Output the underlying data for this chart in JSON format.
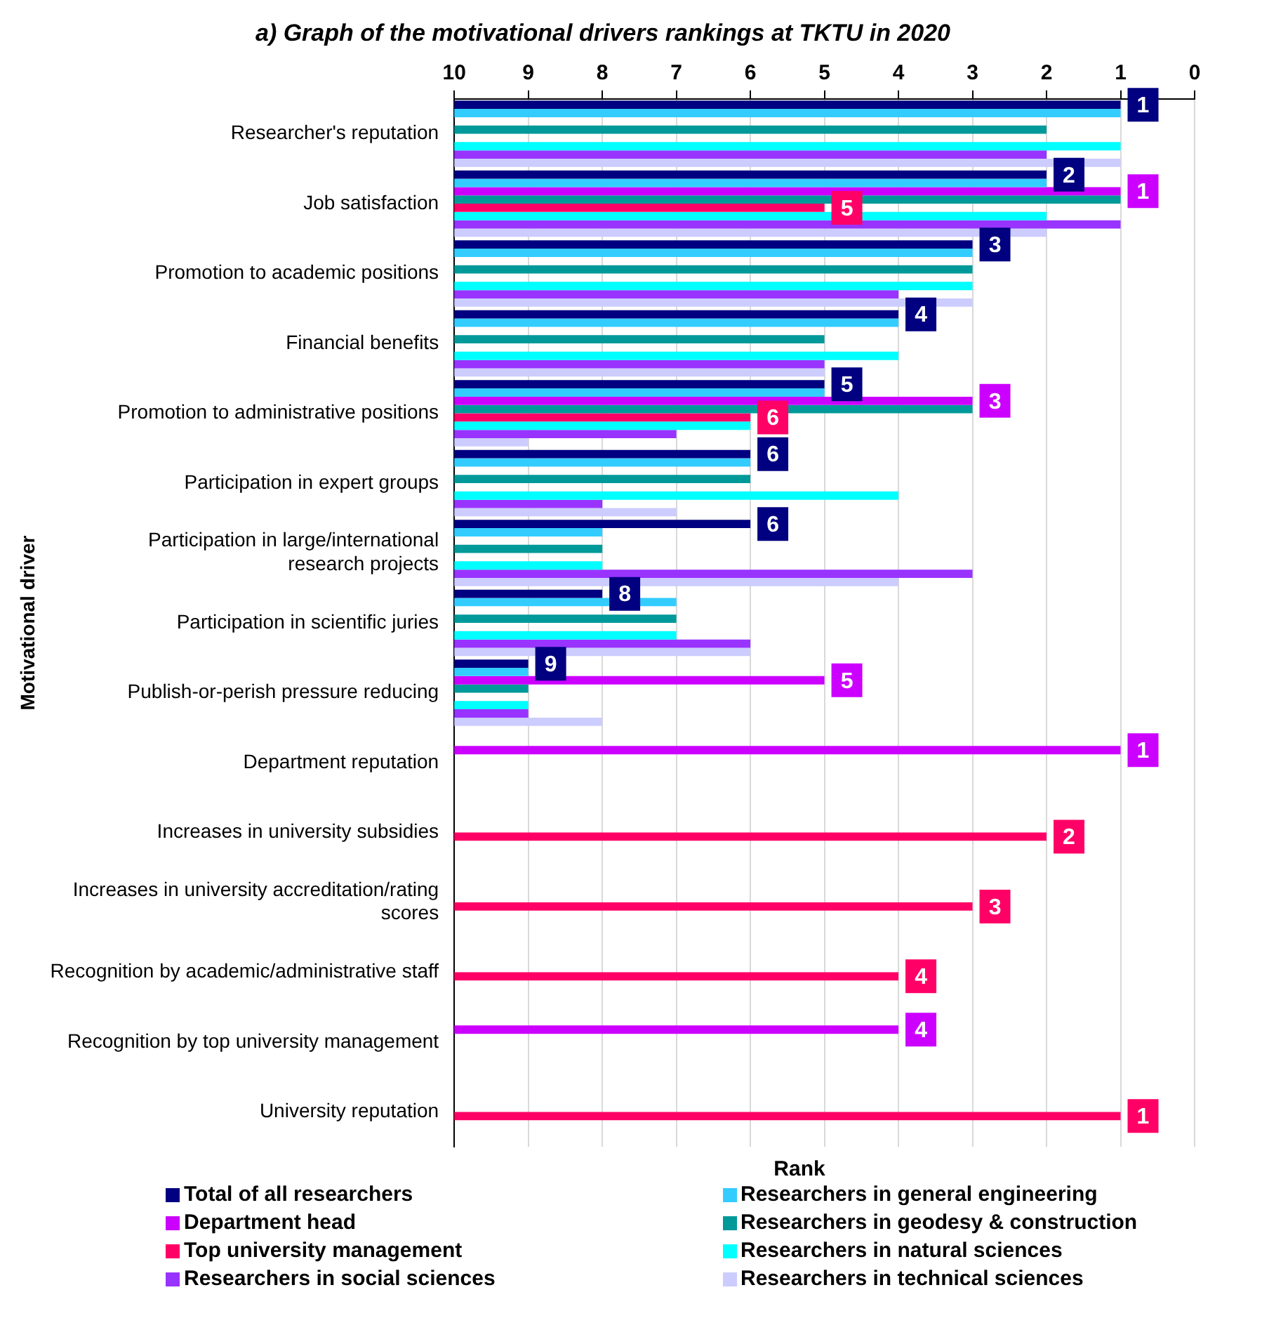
{
  "chart_data": {
    "type": "bar",
    "orientation": "horizontal",
    "title": "a) Graph of the motivational drivers rankings at TKTU in 2020",
    "xlabel": "Rank",
    "ylabel": "Motivational driver",
    "categories": [
      "Researcher's reputation",
      "Job satisfaction",
      "Promotion to academic positions",
      "Financial benefits",
      "Promotion to administrative positions",
      "Participation in expert groups",
      "Participation in large/international research projects",
      "Participation in scientific juries",
      "Publish-or-perish pressure reducing",
      "Department reputation",
      "Increases in university subsidies",
      "Increases in university accreditation/rating scores",
      "Recognition by academic/administrative staff",
      "Recognition by top university management",
      "University reputation"
    ],
    "xlim": [
      10,
      0
    ],
    "xticks": [
      10,
      9,
      8,
      7,
      6,
      5,
      4,
      3,
      2,
      1,
      0
    ],
    "grid": "x",
    "legend": "bottom",
    "series": [
      {
        "name": "Total of all researchers",
        "color": "#000080",
        "base": [
          10,
          10,
          10,
          10,
          10,
          10,
          10,
          10,
          10,
          null,
          null,
          null,
          null,
          null,
          null
        ],
        "values": [
          -9,
          -8,
          -7,
          -6,
          -5,
          -4,
          -4,
          -2,
          -1,
          null,
          null,
          null,
          null,
          null,
          null
        ],
        "value_labels": [
          "1",
          "2",
          "3",
          "4",
          "5",
          "6",
          "6",
          "8",
          "9",
          null,
          null,
          null,
          null,
          null,
          null
        ]
      },
      {
        "name": "Researchers in general engineering",
        "color": "#33ccff",
        "base": [
          10,
          10,
          10,
          10,
          10,
          10,
          10,
          10,
          10,
          null,
          null,
          null,
          null,
          null,
          null
        ],
        "values": [
          -9,
          -8,
          -7,
          -6,
          -5,
          -4,
          -2,
          -3,
          -1,
          null,
          null,
          null,
          null,
          null,
          null
        ]
      },
      {
        "name": "Department head",
        "color": "#cc00ff",
        "base": [
          null,
          10,
          null,
          null,
          10,
          null,
          null,
          null,
          10,
          10,
          null,
          null,
          null,
          10,
          null
        ],
        "values": [
          null,
          -9,
          null,
          null,
          -7,
          null,
          null,
          null,
          -5,
          -9,
          null,
          null,
          null,
          -6,
          null
        ],
        "value_labels": [
          null,
          "1",
          null,
          null,
          "3",
          null,
          null,
          null,
          "5",
          "1",
          null,
          null,
          null,
          "4",
          null
        ]
      },
      {
        "name": "Researchers in geodesy & construction",
        "color": "#009999",
        "base": [
          10,
          10,
          10,
          10,
          10,
          10,
          10,
          10,
          10,
          null,
          null,
          null,
          null,
          null,
          null
        ],
        "values": [
          -8,
          -9,
          -7,
          -5,
          -7,
          -4,
          -2,
          -3,
          -1,
          null,
          null,
          null,
          null,
          null,
          null
        ]
      },
      {
        "name": "Top university management",
        "color": "#ff0066",
        "base": [
          null,
          10,
          null,
          null,
          10,
          null,
          null,
          null,
          null,
          null,
          10,
          10,
          10,
          null,
          10
        ],
        "values": [
          null,
          -5,
          null,
          null,
          -4,
          null,
          null,
          null,
          null,
          null,
          -8,
          -7,
          -6,
          null,
          -9
        ],
        "value_labels": [
          null,
          "5",
          null,
          null,
          "6",
          null,
          null,
          null,
          null,
          null,
          "2",
          "3",
          "4",
          null,
          "1"
        ]
      },
      {
        "name": "Researchers in natural sciences",
        "color": "#00ffff",
        "base": [
          10,
          10,
          10,
          10,
          10,
          10,
          10,
          10,
          10,
          null,
          null,
          null,
          null,
          null,
          null
        ],
        "values": [
          -9,
          -8,
          -7,
          -6,
          -4,
          -6,
          -2,
          -3,
          -1,
          null,
          null,
          null,
          null,
          null,
          null
        ]
      },
      {
        "name": "Researchers in social sciences",
        "color": "#9933ff",
        "base": [
          10,
          10,
          10,
          10,
          10,
          10,
          10,
          10,
          10,
          null,
          null,
          null,
          null,
          null,
          null
        ],
        "values": [
          -8,
          -9,
          -6,
          -5,
          -3,
          -2,
          -7,
          -4,
          -1,
          null,
          null,
          null,
          null,
          null,
          null
        ]
      },
      {
        "name": "Researchers in technical sciences",
        "color": "#ccccff",
        "base": [
          10,
          10,
          10,
          10,
          10,
          10,
          10,
          10,
          10,
          null,
          null,
          null,
          null,
          null,
          null
        ],
        "values": [
          -9,
          -8,
          -7,
          -5,
          -1,
          -3,
          -6,
          -4,
          -2,
          null,
          null,
          null,
          null,
          null,
          null
        ]
      }
    ]
  }
}
